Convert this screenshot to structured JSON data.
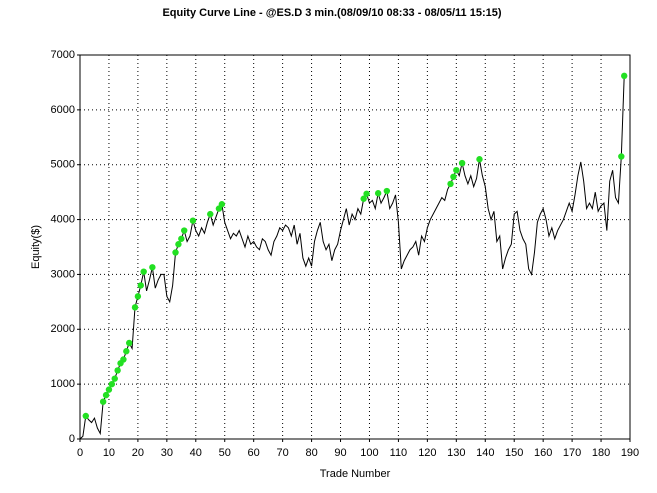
{
  "chart_data": {
    "type": "line",
    "title": "Equity Curve Line - @ES.D 3 min.(08/09/10 08:33 - 08/05/11 15:15)",
    "xlabel": "Trade Number",
    "ylabel": "Equity($)",
    "x": [
      0,
      1,
      2,
      3,
      4,
      5,
      6,
      7,
      8,
      9,
      10,
      11,
      12,
      13,
      14,
      15,
      16,
      17,
      18,
      19,
      20,
      21,
      22,
      23,
      24,
      25,
      26,
      27,
      28,
      29,
      30,
      31,
      32,
      33,
      34,
      35,
      36,
      37,
      38,
      39,
      40,
      41,
      42,
      43,
      44,
      45,
      46,
      47,
      48,
      49,
      50,
      51,
      52,
      53,
      54,
      55,
      56,
      57,
      58,
      59,
      60,
      61,
      62,
      63,
      64,
      65,
      66,
      67,
      68,
      69,
      70,
      71,
      72,
      73,
      74,
      75,
      76,
      77,
      78,
      79,
      80,
      81,
      82,
      83,
      84,
      85,
      86,
      87,
      88,
      89,
      90,
      91,
      92,
      93,
      94,
      95,
      96,
      97,
      98,
      99,
      100,
      101,
      102,
      103,
      104,
      105,
      106,
      107,
      108,
      109,
      110,
      111,
      112,
      113,
      114,
      115,
      116,
      117,
      118,
      119,
      120,
      121,
      122,
      123,
      124,
      125,
      126,
      127,
      128,
      129,
      130,
      131,
      132,
      133,
      134,
      135,
      136,
      137,
      138,
      139,
      140,
      141,
      142,
      143,
      144,
      145,
      146,
      147,
      148,
      149,
      150,
      151,
      152,
      153,
      154,
      155,
      156,
      157,
      158,
      159,
      160,
      161,
      162,
      163,
      164,
      165,
      166,
      167,
      168,
      169,
      170,
      171,
      172,
      173,
      174,
      175,
      176,
      177,
      178,
      179,
      180,
      181,
      182,
      183,
      184,
      185,
      186,
      187,
      188
    ],
    "values": [
      0,
      50,
      420,
      350,
      300,
      380,
      200,
      100,
      680,
      800,
      900,
      1000,
      1100,
      1250,
      1380,
      1450,
      1600,
      1750,
      1650,
      2400,
      2600,
      2800,
      3050,
      2700,
      2900,
      3130,
      2750,
      2900,
      3000,
      3000,
      2600,
      2500,
      2800,
      3400,
      3550,
      3650,
      3800,
      3600,
      3700,
      3980,
      3800,
      3700,
      3850,
      3750,
      3950,
      4100,
      3900,
      4050,
      4200,
      4280,
      3950,
      3800,
      3650,
      3750,
      3700,
      3800,
      3650,
      3500,
      3700,
      3550,
      3600,
      3500,
      3450,
      3650,
      3600,
      3450,
      3350,
      3600,
      3700,
      3850,
      3800,
      3900,
      3850,
      3700,
      3900,
      3550,
      3750,
      3300,
      3150,
      3300,
      3150,
      3600,
      3800,
      3950,
      3600,
      3450,
      3550,
      3250,
      3450,
      3550,
      3800,
      4000,
      4200,
      3900,
      4100,
      4000,
      4200,
      4100,
      4380,
      4470,
      4300,
      4350,
      4200,
      4480,
      4300,
      4400,
      4520,
      4200,
      4300,
      4450,
      3950,
      3100,
      3250,
      3350,
      3450,
      3500,
      3600,
      3350,
      3700,
      3600,
      3850,
      4000,
      4100,
      4200,
      4300,
      4400,
      4350,
      4550,
      4650,
      4780,
      4900,
      4800,
      5030,
      4800,
      4650,
      4800,
      4600,
      4750,
      5100,
      4800,
      4600,
      4200,
      4000,
      4150,
      3600,
      3700,
      3100,
      3300,
      3450,
      3550,
      4100,
      4150,
      3800,
      3650,
      3550,
      3100,
      3000,
      3400,
      3950,
      4100,
      4200,
      4000,
      3700,
      3850,
      3650,
      3800,
      3900,
      4000,
      4150,
      4300,
      4150,
      4450,
      4800,
      5050,
      4700,
      4200,
      4300,
      4200,
      4500,
      4150,
      4250,
      4300,
      3800,
      4700,
      4900,
      4400,
      4300,
      5150,
      6620
    ],
    "color": "#000000",
    "markers": {
      "color": "#22e022",
      "x": [
        2,
        8,
        9,
        10,
        11,
        12,
        13,
        14,
        15,
        16,
        17,
        19,
        20,
        21,
        22,
        25,
        33,
        34,
        35,
        36,
        39,
        45,
        48,
        49,
        98,
        99,
        103,
        106,
        128,
        129,
        130,
        132,
        138,
        187,
        188
      ],
      "values": [
        420,
        680,
        800,
        900,
        1000,
        1100,
        1250,
        1380,
        1450,
        1600,
        1750,
        2400,
        2600,
        2800,
        3050,
        3130,
        3400,
        3550,
        3650,
        3800,
        3980,
        4100,
        4200,
        4280,
        4380,
        4470,
        4480,
        4520,
        4650,
        4780,
        4900,
        5030,
        5100,
        5150,
        6620
      ]
    },
    "xlim": [
      0,
      190
    ],
    "xticks": [
      0,
      10,
      20,
      30,
      40,
      50,
      60,
      70,
      80,
      90,
      100,
      110,
      120,
      130,
      140,
      150,
      160,
      170,
      180,
      190
    ],
    "ylim": [
      0,
      7000
    ],
    "yticks": [
      0,
      1000,
      2000,
      3000,
      4000,
      5000,
      6000,
      7000
    ],
    "grid": true
  }
}
